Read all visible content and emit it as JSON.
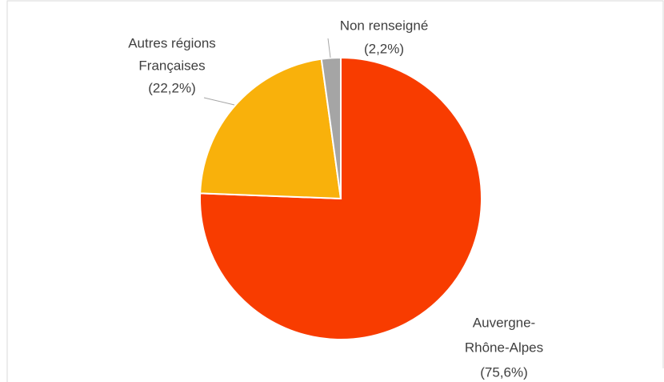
{
  "chart_data": {
    "type": "pie",
    "categories": [
      [
        "Auvergne-",
        "Rhône-Alpes"
      ],
      [
        "Autres régions",
        "Françaises"
      ],
      [
        "Non renseigné"
      ]
    ],
    "values": [
      75.6,
      22.2,
      2.2
    ],
    "value_labels": [
      "(75,6%)",
      "(22,2%)",
      "(2,2%)"
    ],
    "colors": [
      "#f83c00",
      "#f9b10b",
      "#a5a5a5"
    ]
  }
}
